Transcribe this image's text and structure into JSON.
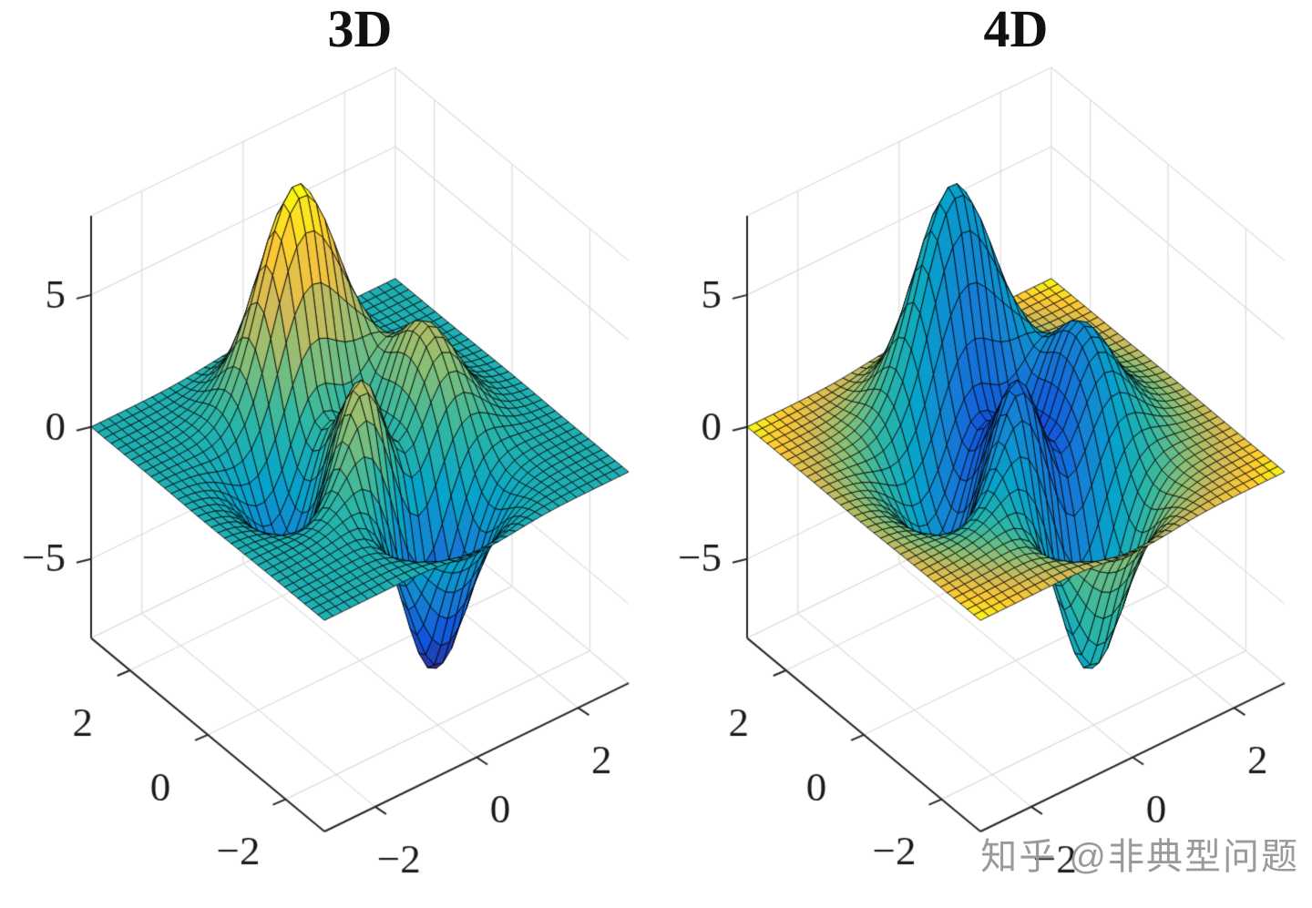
{
  "figure": {
    "background": "#ffffff",
    "watermark": "知乎 @非典型问题"
  },
  "style": {
    "colormap": "parula",
    "colormap_stops": [
      "#352a87",
      "#1153dd",
      "#1580d5",
      "#06a4ca",
      "#2eb7a4",
      "#87bf77",
      "#d1bb59",
      "#fec832",
      "#f9fb0e"
    ],
    "edge_color": "#000000",
    "axis_color": "#262626",
    "grid_color": "#dcdcdc",
    "label_color": "#1a1a1a"
  },
  "chart_data": [
    {
      "type": "surface",
      "title": "3D",
      "surface_function": "matlab-peaks",
      "formula": "z = 3*(1-x)^2*exp(-x^2-(y+1)^2) - 10*(x/5-x^3-y^5)*exp(-x^2-y^2) - (1/3)*exp(-(x+1)^2-y^2)",
      "x_range": [
        -3,
        3
      ],
      "y_range": [
        -3,
        3
      ],
      "z_range": [
        -8,
        8
      ],
      "x_ticks": [
        -2,
        0,
        2
      ],
      "x_tick_labels": [
        "−2",
        "0",
        "2"
      ],
      "y_ticks": [
        -2,
        0,
        2
      ],
      "y_tick_labels": [
        "−2",
        "0",
        "2"
      ],
      "z_ticks": [
        -5,
        0,
        5
      ],
      "z_tick_labels": [
        "−5",
        "0",
        "5"
      ],
      "grid_n": 36,
      "colormap": "parula",
      "color_by": "z",
      "view": {
        "azimuth": -37.5,
        "elevation": 30
      },
      "grid": true
    },
    {
      "type": "surface",
      "title": "4D",
      "surface_function": "matlab-peaks",
      "formula": "z = 3*(1-x)^2*exp(-x^2-(y+1)^2) - 10*(x/5-x^3-y^5)*exp(-x^2-y^2) - (1/3)*exp(-(x+1)^2-y^2)",
      "color_note": "color encodes a 4th variable (radial distance from center): yellow at outer edges, blue at center peaks",
      "x_range": [
        -3,
        3
      ],
      "y_range": [
        -3,
        3
      ],
      "z_range": [
        -8,
        8
      ],
      "x_ticks": [
        -2,
        0,
        2
      ],
      "x_tick_labels": [
        "−2",
        "0",
        "2"
      ],
      "y_ticks": [
        -2,
        0,
        2
      ],
      "y_tick_labels": [
        "−2",
        "0",
        "2"
      ],
      "z_ticks": [
        -5,
        0,
        5
      ],
      "z_tick_labels": [
        "−5",
        "0",
        "5"
      ],
      "grid_n": 36,
      "colormap": "parula",
      "color_by": "radius",
      "view": {
        "azimuth": -37.5,
        "elevation": 30
      },
      "grid": true
    }
  ]
}
